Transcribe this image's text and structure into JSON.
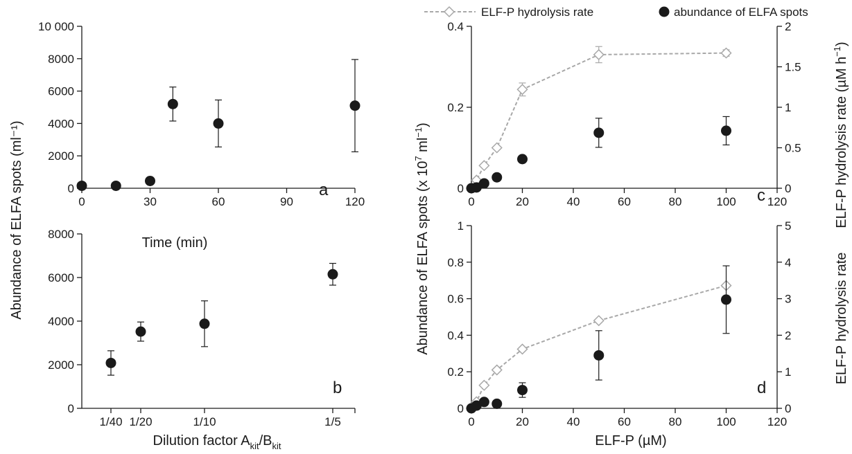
{
  "chart_data": [
    {
      "panel": "a",
      "type": "scatter",
      "xlabel": "Time (min)",
      "ylabel": "Abundance of ELFA spots (ml⁻¹)",
      "xlim": [
        0,
        120
      ],
      "ylim": [
        0,
        10000
      ],
      "x_ticks": [
        0,
        30,
        60,
        90,
        120
      ],
      "y_ticks": [
        0,
        2000,
        4000,
        6000,
        8000,
        10000
      ],
      "y_tick_labels": [
        "0",
        "2000",
        "4000",
        "6000",
        "8000",
        "10 000"
      ],
      "series": [
        {
          "marker": "filled-circle",
          "x": [
            0,
            15,
            30,
            40,
            60,
            120
          ],
          "y": [
            150,
            150,
            450,
            5200,
            4000,
            5100
          ],
          "err": [
            0,
            0,
            0,
            1050,
            1450,
            2850
          ]
        }
      ]
    },
    {
      "panel": "b",
      "type": "scatter",
      "xlabel": "Dilution factor A",
      "xlabel_sub1": "kit",
      "xlabel_mid": "/B",
      "xlabel_sub2": "kit",
      "ylim": [
        0,
        8000
      ],
      "x_ticks": [
        0.025,
        0.05,
        0.1,
        0.2
      ],
      "x_tick_labels": [
        "1/40",
        "1/20",
        "1/10",
        "1/5"
      ],
      "y_ticks": [
        0,
        2000,
        4000,
        6000,
        8000
      ],
      "series": [
        {
          "marker": "filled-circle",
          "x": [
            0.025,
            0.05,
            0.1,
            0.2
          ],
          "y": [
            2080,
            3520,
            3880,
            6150
          ],
          "err": [
            560,
            440,
            1050,
            500
          ]
        }
      ]
    },
    {
      "panel": "c",
      "type": "scatter",
      "xlim": [
        0,
        120
      ],
      "ylim": [
        0,
        0.4
      ],
      "y2lim": [
        0,
        2
      ],
      "x_ticks": [
        0,
        20,
        40,
        60,
        80,
        100,
        120
      ],
      "y_ticks": [
        0,
        0.2,
        0.4
      ],
      "y2_ticks": [
        0,
        0.5,
        1,
        1.5,
        2
      ],
      "series": [
        {
          "name": "ELF-P hydrolysis rate",
          "axis": "right",
          "marker": "open-diamond",
          "line": "dashed",
          "color": "#a8a8a8",
          "x": [
            0,
            2,
            5,
            10,
            20,
            50,
            100
          ],
          "y": [
            0,
            0.1,
            0.28,
            0.5,
            1.22,
            1.65,
            1.67
          ],
          "err": [
            0,
            0,
            0,
            0,
            0.08,
            0.1,
            0.04
          ]
        },
        {
          "name": "abundance of ELFA spots",
          "axis": "left",
          "marker": "filled-circle",
          "color": "#1a1a1a",
          "x": [
            0,
            2,
            5,
            10,
            20,
            50,
            100
          ],
          "y": [
            0,
            0.002,
            0.012,
            0.027,
            0.072,
            0.137,
            0.142
          ],
          "err": [
            0,
            0,
            0,
            0,
            0,
            0.036,
            0.035
          ]
        }
      ]
    },
    {
      "panel": "d",
      "type": "scatter",
      "xlabel": "ELF-P (µM)",
      "xlim": [
        0,
        120
      ],
      "ylim": [
        0,
        1
      ],
      "y2lim": [
        0,
        5
      ],
      "x_ticks": [
        0,
        20,
        40,
        60,
        80,
        100,
        120
      ],
      "y_ticks": [
        0,
        0.2,
        0.4,
        0.6,
        0.8,
        1
      ],
      "y2_ticks": [
        0,
        1,
        2,
        3,
        4,
        5
      ],
      "series": [
        {
          "name": "ELF-P hydrolysis rate",
          "axis": "right",
          "marker": "open-diamond",
          "line": "dashed",
          "color": "#a8a8a8",
          "x": [
            0,
            2,
            5,
            10,
            20,
            50,
            100
          ],
          "y": [
            0,
            0.18,
            0.63,
            1.05,
            1.62,
            2.4,
            3.36
          ],
          "err": [
            0,
            0,
            0,
            0,
            0,
            0,
            0
          ]
        },
        {
          "name": "abundance of ELFA spots",
          "axis": "left",
          "marker": "filled-circle",
          "color": "#1a1a1a",
          "x": [
            0,
            2,
            5,
            10,
            20,
            50,
            100
          ],
          "y": [
            0,
            0.015,
            0.035,
            0.025,
            0.1,
            0.29,
            0.595
          ],
          "err": [
            0,
            0,
            0,
            0,
            0.04,
            0.135,
            0.185
          ]
        }
      ]
    }
  ],
  "shared": {
    "left_ylabel_ab": "Abundance of ELFA spots (ml⁻¹)",
    "left_ylabel_cd_pre": "Abundance of ELFA spots (x 10",
    "left_ylabel_cd_exp": "7",
    "left_ylabel_cd_mid": " ml",
    "left_ylabel_cd_exp2": "−1",
    "left_ylabel_cd_post": ")",
    "right_ylabel_c_pre": "ELF-P hydrolysis rate (µM h",
    "right_ylabel_c_exp": "−1",
    "right_ylabel_c_post": ")",
    "right_ylabel_d": "ELF-P hydrolysis rate",
    "legend": [
      "ELF-P hydrolysis rate",
      "abundance of ELFA spots"
    ]
  }
}
